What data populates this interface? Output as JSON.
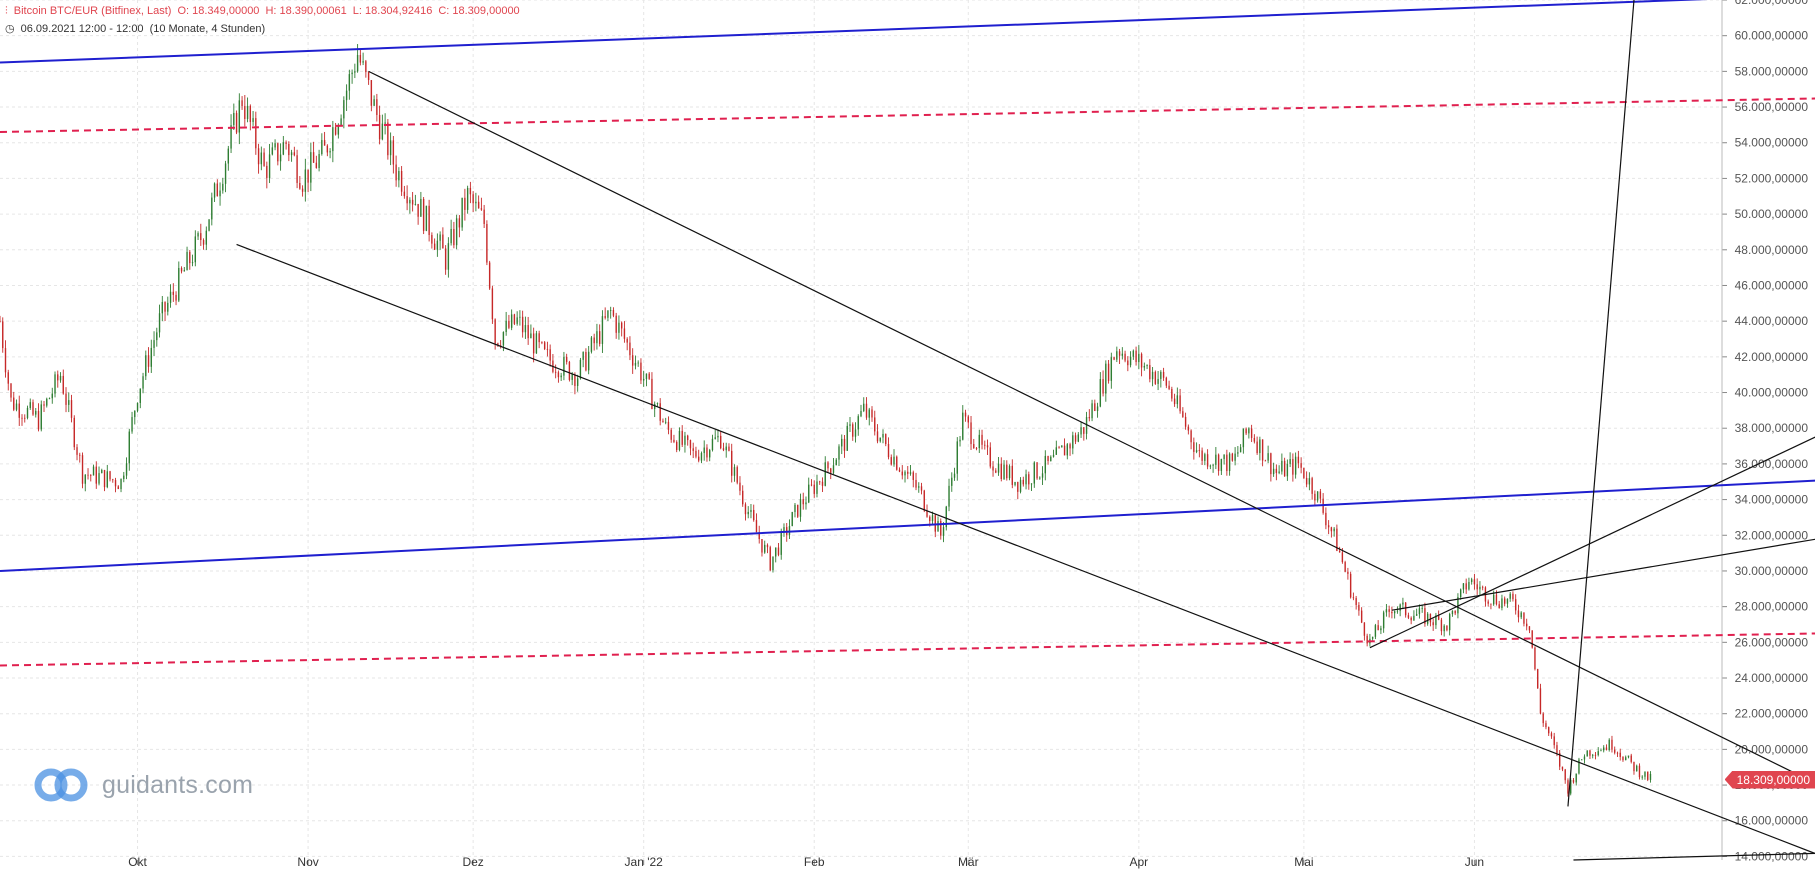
{
  "header": {
    "instrument": "Bitcoin BTC/EUR (Bitfinex, Last)",
    "open": "O: 18.349,00000",
    "high": "H: 18.390,00061",
    "low": "L: 18.304,92416",
    "close": "C: 18.309,00000",
    "period": "06.09.2021 12:00 - 12:00",
    "span": "(10 Monate, 4 Stunden)",
    "header_icon": "candlestick-icon",
    "clock_icon": "clock-icon"
  },
  "logo": {
    "text": "guidants.com",
    "icon": "guidants-logo-icon"
  },
  "last_price_label": "18.309,00000",
  "colors": {
    "up": "#2e7d32",
    "down": "#c62828",
    "blue_line": "#1f1fcf",
    "red_dashed": "#e0204f",
    "black_line": "#111111",
    "price_tag": "#e0454f"
  },
  "chart_data": {
    "type": "candlestick",
    "title": "Bitcoin BTC/EUR (Bitfinex, Last)",
    "x_labels": [
      "Okt",
      "Nov",
      "Dez",
      "Jan '22",
      "Feb",
      "Mär",
      "Apr",
      "Mai",
      "Jun"
    ],
    "x_label_dates": [
      "2021-10-01",
      "2021-11-01",
      "2021-12-01",
      "2022-01-01",
      "2022-02-01",
      "2022-03-01",
      "2022-04-01",
      "2022-05-01",
      "2022-06-01"
    ],
    "x_range": [
      "2021-09-06",
      "2022-07-16"
    ],
    "y_ticks": [
      "14.000,00000",
      "16.000,00000",
      "18.000,00000",
      "20.000,00000",
      "22.000,00000",
      "24.000,00000",
      "26.000,00000",
      "28.000,00000",
      "30.000,00000",
      "32.000,00000",
      "34.000,00000",
      "36.000,00000",
      "38.000,00000",
      "40.000,00000",
      "42.000,00000",
      "44.000,00000",
      "46.000,00000",
      "48.000,00000",
      "50.000,00000",
      "52.000,00000",
      "54.000,00000",
      "56.000,00000",
      "58.000,00000",
      "60.000,00000",
      "62.000,00000"
    ],
    "y_tick_values": [
      14000,
      16000,
      18000,
      20000,
      22000,
      24000,
      26000,
      28000,
      30000,
      32000,
      34000,
      36000,
      38000,
      40000,
      42000,
      44000,
      46000,
      48000,
      50000,
      52000,
      54000,
      56000,
      58000,
      60000,
      62000
    ],
    "ylim": [
      13800,
      62000
    ],
    "y_axis_side": "right",
    "grid": true,
    "price_path": [
      [
        "2021-09-06",
        44000
      ],
      [
        "2021-09-08",
        39500
      ],
      [
        "2021-09-13",
        38500
      ],
      [
        "2021-09-17",
        41000
      ],
      [
        "2021-09-21",
        35500
      ],
      [
        "2021-09-28",
        35000
      ],
      [
        "2021-10-01",
        40000
      ],
      [
        "2021-10-05",
        44000
      ],
      [
        "2021-10-09",
        46500
      ],
      [
        "2021-10-13",
        49000
      ],
      [
        "2021-10-16",
        52000
      ],
      [
        "2021-10-20",
        56500
      ],
      [
        "2021-10-24",
        52500
      ],
      [
        "2021-10-28",
        54000
      ],
      [
        "2021-10-31",
        52000
      ],
      [
        "2021-11-04",
        53500
      ],
      [
        "2021-11-08",
        57000
      ],
      [
        "2021-11-10",
        59000
      ],
      [
        "2021-11-13",
        56000
      ],
      [
        "2021-11-17",
        52500
      ],
      [
        "2021-11-21",
        50500
      ],
      [
        "2021-11-26",
        47500
      ],
      [
        "2021-11-30",
        51000
      ],
      [
        "2021-12-03",
        49500
      ],
      [
        "2021-12-05",
        43000
      ],
      [
        "2021-12-09",
        44000
      ],
      [
        "2021-12-14",
        42000
      ],
      [
        "2021-12-20",
        41000
      ],
      [
        "2021-12-26",
        44500
      ],
      [
        "2021-12-31",
        41500
      ],
      [
        "2022-01-05",
        38000
      ],
      [
        "2022-01-10",
        36500
      ],
      [
        "2022-01-15",
        37500
      ],
      [
        "2022-01-21",
        32500
      ],
      [
        "2022-01-24",
        30500
      ],
      [
        "2022-01-29",
        33500
      ],
      [
        "2022-02-04",
        36000
      ],
      [
        "2022-02-10",
        39000
      ],
      [
        "2022-02-14",
        37000
      ],
      [
        "2022-02-20",
        34500
      ],
      [
        "2022-02-24",
        32000
      ],
      [
        "2022-02-28",
        38500
      ],
      [
        "2022-03-04",
        36500
      ],
      [
        "2022-03-10",
        35000
      ],
      [
        "2022-03-16",
        36000
      ],
      [
        "2022-03-22",
        38000
      ],
      [
        "2022-03-28",
        42500
      ],
      [
        "2022-04-02",
        41500
      ],
      [
        "2022-04-06",
        40500
      ],
      [
        "2022-04-12",
        36500
      ],
      [
        "2022-04-18",
        36000
      ],
      [
        "2022-04-21",
        38000
      ],
      [
        "2022-04-26",
        35500
      ],
      [
        "2022-04-30",
        36000
      ],
      [
        "2022-05-03",
        34500
      ],
      [
        "2022-05-07",
        31500
      ],
      [
        "2022-05-11",
        27500
      ],
      [
        "2022-05-13",
        26000
      ],
      [
        "2022-05-17",
        28000
      ],
      [
        "2022-05-22",
        27500
      ],
      [
        "2022-05-27",
        27000
      ],
      [
        "2022-05-31",
        29500
      ],
      [
        "2022-06-04",
        28500
      ],
      [
        "2022-06-08",
        28200
      ],
      [
        "2022-06-11",
        27000
      ],
      [
        "2022-06-13",
        22000
      ],
      [
        "2022-06-15",
        20500
      ],
      [
        "2022-06-18",
        17800
      ],
      [
        "2022-06-21",
        19800
      ],
      [
        "2022-06-26",
        20300
      ],
      [
        "2022-06-30",
        19000
      ],
      [
        "2022-07-03",
        18309
      ]
    ],
    "trend_lines": [
      {
        "style": "blue",
        "from": [
          "2021-09-06",
          58500
        ],
        "to": [
          "2022-07-26",
          62200
        ]
      },
      {
        "style": "blue",
        "from": [
          "2021-09-06",
          30000
        ],
        "to": [
          "2022-10-15",
          36200
        ]
      },
      {
        "style": "red-dashed",
        "from": [
          "2021-09-06",
          54600
        ],
        "to": [
          "2022-10-15",
          56900
        ]
      },
      {
        "style": "red-dashed",
        "from": [
          "2021-09-06",
          24700
        ],
        "to": [
          "2022-10-15",
          26900
        ]
      },
      {
        "style": "black",
        "from": [
          "2021-11-12",
          58000
        ],
        "to": [
          "2022-08-31",
          13700
        ]
      },
      {
        "style": "black",
        "from": [
          "2021-10-19",
          48300
        ],
        "to": [
          "2022-08-05",
          13800
        ]
      },
      {
        "style": "black",
        "from": [
          "2022-05-13",
          25700
        ],
        "to": [
          "2022-10-15",
          48300
        ]
      },
      {
        "style": "black",
        "from": [
          "2022-05-17",
          27800
        ],
        "to": [
          "2022-10-15",
          35600
        ]
      },
      {
        "style": "black",
        "from": [
          "2022-06-18",
          16800
        ],
        "to": [
          "2022-06-30",
          62000
        ]
      },
      {
        "style": "black",
        "from": [
          "2022-06-19",
          13800
        ],
        "to": [
          "2022-10-15",
          14800
        ]
      }
    ],
    "last_price": 18309
  }
}
